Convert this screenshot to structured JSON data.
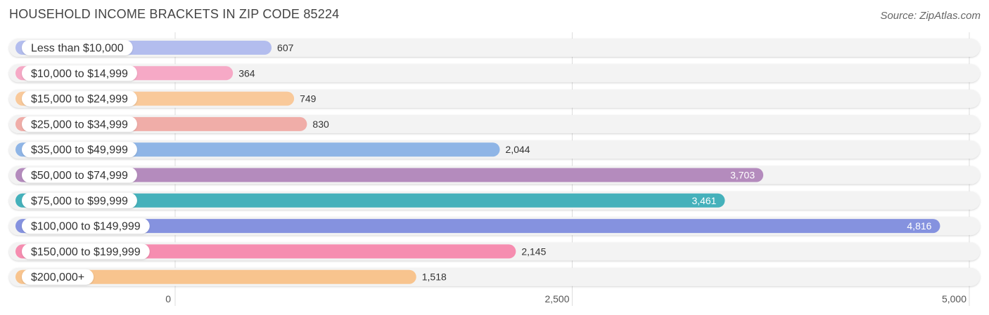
{
  "header": {
    "title": "HOUSEHOLD INCOME BRACKETS IN ZIP CODE 85224",
    "source": "Source: ZipAtlas.com"
  },
  "chart_data": {
    "type": "bar",
    "orientation": "horizontal",
    "title": "HOUSEHOLD INCOME BRACKETS IN ZIP CODE 85224",
    "xlabel": "",
    "ylabel": "",
    "xlim": [
      0,
      5000
    ],
    "grid": true,
    "ticks": [
      {
        "value": 0,
        "label": "0"
      },
      {
        "value": 2500,
        "label": "2,500"
      },
      {
        "value": 5000,
        "label": "5,000"
      }
    ],
    "categories": [
      "Less than $10,000",
      "$10,000 to $14,999",
      "$15,000 to $24,999",
      "$25,000 to $34,999",
      "$35,000 to $49,999",
      "$50,000 to $74,999",
      "$75,000 to $99,999",
      "$100,000 to $149,999",
      "$150,000 to $199,999",
      "$200,000+"
    ],
    "values": [
      607,
      364,
      749,
      830,
      2044,
      3703,
      3461,
      4816,
      2145,
      1518
    ],
    "value_labels": [
      "607",
      "364",
      "749",
      "830",
      "2,044",
      "3,703",
      "3,461",
      "4,816",
      "2,145",
      "1,518"
    ],
    "colors": [
      "#b3bdee",
      "#f6a9c6",
      "#f9c99a",
      "#f0ada8",
      "#8fb5e6",
      "#b48bbd",
      "#45b1bb",
      "#8592df",
      "#f68db0",
      "#f8c48e"
    ]
  }
}
